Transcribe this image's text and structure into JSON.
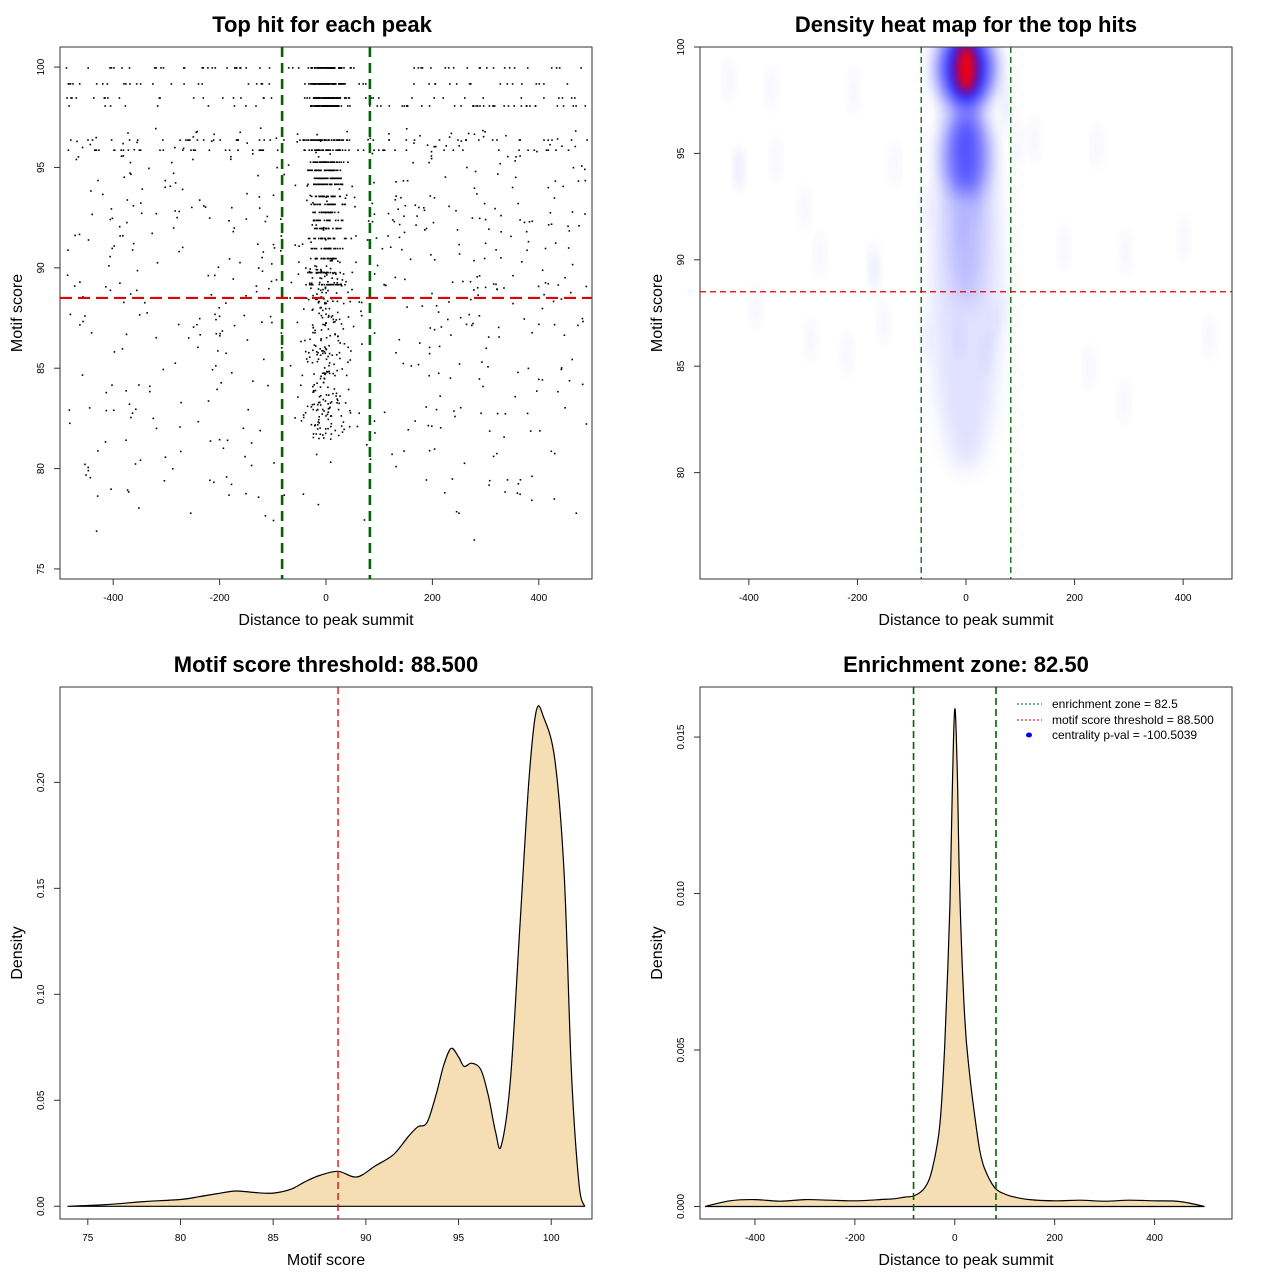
{
  "chart_data": [
    {
      "type": "scatter",
      "title": "Top hit for each peak",
      "xlabel": "Distance to peak summit",
      "ylabel": "Motif score",
      "xlim": [
        -500,
        500
      ],
      "ylim": [
        74.5,
        101
      ],
      "xticks": [
        -400,
        -200,
        0,
        200,
        400
      ],
      "yticks": [
        75,
        80,
        85,
        90,
        95,
        100
      ],
      "vlines": [
        -82.5,
        82.5
      ],
      "hline": 88.5,
      "vline_color": "#006400",
      "hline_color": "#e00000",
      "point_color": "#000000",
      "distribution": "points concentrated within +/-80 of summit at discrete score levels near 96-100; sparse uniform background across -500..500"
    },
    {
      "type": "heatmap",
      "title": "Density heat map for the top hits",
      "xlabel": "Distance to peak summit",
      "ylabel": "Motif score",
      "xlim": [
        -490,
        490
      ],
      "ylim": [
        75,
        100
      ],
      "xticks": [
        -400,
        -200,
        0,
        200,
        400
      ],
      "yticks": [
        80,
        85,
        90,
        95,
        100
      ],
      "vlines": [
        -82.5,
        82.5
      ],
      "hline": 88.5,
      "colors": [
        "#ffffff",
        "#0000ff",
        "#ff0000"
      ],
      "hotspots": [
        {
          "x": 0,
          "y": 99,
          "level": "high"
        },
        {
          "x": 0,
          "y": 95,
          "level": "medium"
        }
      ]
    },
    {
      "type": "area",
      "title": "Motif score threshold: 88.500",
      "xlabel": "Motif score",
      "ylabel": "Density",
      "xlim": [
        73.5,
        102.2
      ],
      "ylim": [
        -0.006,
        0.245
      ],
      "xticks": [
        75,
        80,
        85,
        90,
        95,
        100
      ],
      "yticks": [
        0.0,
        0.05,
        0.1,
        0.15,
        0.2
      ],
      "ytick_labels": [
        "0.00",
        "0.05",
        "0.10",
        "0.15",
        "0.20"
      ],
      "vline": 88.5,
      "fill": "#f5deb3",
      "x": [
        73.9,
        76,
        78,
        80,
        81,
        82,
        83,
        84,
        85,
        86,
        86.7,
        87.5,
        88.5,
        89.5,
        90.5,
        91.5,
        92.3,
        92.8,
        93.3,
        93.8,
        94.2,
        94.6,
        95,
        95.3,
        95.7,
        96.2,
        96.6,
        97,
        97.3,
        97.8,
        98.3,
        98.8,
        99.2,
        99.6,
        100.2,
        100.7,
        101.1,
        101.5,
        101.8
      ],
      "y": [
        0.0,
        0.0008,
        0.0022,
        0.0032,
        0.0045,
        0.006,
        0.0072,
        0.0065,
        0.0062,
        0.0082,
        0.0115,
        0.0145,
        0.0165,
        0.0138,
        0.019,
        0.0245,
        0.033,
        0.0375,
        0.0395,
        0.053,
        0.0665,
        0.0745,
        0.0705,
        0.066,
        0.0675,
        0.0645,
        0.0525,
        0.035,
        0.0285,
        0.0595,
        0.1305,
        0.2015,
        0.234,
        0.2305,
        0.2105,
        0.1565,
        0.0615,
        0.0105,
        0.0
      ]
    },
    {
      "type": "area",
      "title": "Enrichment zone: 82.50",
      "xlabel": "Distance to peak summit",
      "ylabel": "Density",
      "xlim": [
        -510,
        555
      ],
      "ylim": [
        -0.0004,
        0.0166
      ],
      "xticks": [
        -400,
        -200,
        0,
        200,
        400
      ],
      "yticks": [
        0.0,
        0.005,
        0.01,
        0.015
      ],
      "ytick_labels": [
        "0.000",
        "0.005",
        "0.010",
        "0.015"
      ],
      "vlines": [
        -82.5,
        82.5
      ],
      "fill": "#f5deb3",
      "x": [
        -500,
        -450,
        -400,
        -350,
        -300,
        -250,
        -200,
        -150,
        -120,
        -100,
        -80,
        -60,
        -45,
        -30,
        -20,
        -10,
        -5,
        0,
        5,
        10,
        20,
        30,
        40,
        50,
        60,
        80,
        100,
        120,
        150,
        200,
        250,
        300,
        350,
        400,
        450,
        500
      ],
      "y": [
        0.0,
        0.00018,
        0.00022,
        0.00017,
        0.00022,
        0.0002,
        0.00018,
        0.00022,
        0.00025,
        0.0003,
        0.00035,
        0.0006,
        0.0012,
        0.0026,
        0.0052,
        0.0095,
        0.0133,
        0.0159,
        0.0139,
        0.01,
        0.006,
        0.0042,
        0.0029,
        0.0018,
        0.0012,
        0.0006,
        0.0004,
        0.0003,
        0.00022,
        0.00018,
        0.0002,
        0.00017,
        0.0002,
        0.00018,
        0.00016,
        0.0
      ],
      "legend": [
        {
          "label": "enrichment zone = 82.5",
          "color": "#006400",
          "style": "dotted"
        },
        {
          "label": "motif score threshold = 88.500",
          "color": "#e00000",
          "style": "dotted"
        },
        {
          "label": "centrality p-val = -100.5039",
          "color": "#0000ff",
          "style": "point"
        }
      ]
    }
  ]
}
